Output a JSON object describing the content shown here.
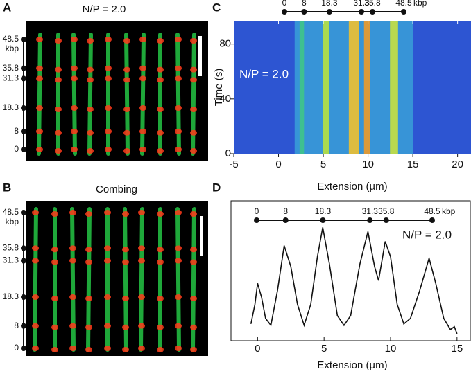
{
  "panel_a": {
    "label": "A",
    "title": "N/P = 2.0",
    "unit": "kbp",
    "marks": [
      0,
      8,
      18.3,
      31.3,
      35.8,
      48.5
    ]
  },
  "panel_b": {
    "label": "B",
    "title": "Combing",
    "unit": "kbp",
    "marks": [
      0,
      8,
      18.3,
      31.3,
      35.8,
      48.5
    ]
  },
  "panel_c": {
    "label": "C",
    "type": "heatmap",
    "title": "N/P = 2.0",
    "x_label": "Extension (µm)",
    "y_label": "Time (s)",
    "xlim": [
      -5,
      21.5
    ],
    "xticks": [
      -5,
      0,
      5,
      10,
      15,
      20
    ],
    "ylim": [
      0,
      97
    ],
    "yticks": [
      0,
      40,
      80
    ],
    "unit": "kbp",
    "marks": [
      0,
      8,
      18.3,
      31.3,
      35.8,
      48.5
    ],
    "band_centers": [
      2.6,
      5.3,
      8.4,
      9.9,
      12.9
    ]
  },
  "panel_d": {
    "label": "D",
    "type": "line",
    "title": "N/P = 2.0",
    "x_label": "Extension (µm)",
    "xlim": [
      -2,
      16
    ],
    "xticks": [
      0,
      5,
      10,
      15
    ],
    "ylim": [
      0,
      1
    ],
    "unit": "kbp",
    "marks": [
      0,
      8,
      18.3,
      31.3,
      35.8,
      48.5
    ],
    "x": [
      -0.5,
      -0.2,
      0,
      0.3,
      0.6,
      1,
      1.5,
      2,
      2.5,
      3,
      3.5,
      4,
      4.5,
      4.9,
      5.4,
      6,
      6.5,
      7,
      7.7,
      8.3,
      8.8,
      9.1,
      9.6,
      10,
      10.5,
      11,
      11.5,
      12.2,
      12.9,
      13.4,
      14,
      14.5,
      14.8,
      15
    ],
    "values": [
      0.12,
      0.26,
      0.41,
      0.31,
      0.16,
      0.11,
      0.36,
      0.68,
      0.53,
      0.26,
      0.11,
      0.26,
      0.6,
      0.81,
      0.55,
      0.18,
      0.11,
      0.18,
      0.55,
      0.78,
      0.53,
      0.43,
      0.71,
      0.6,
      0.26,
      0.12,
      0.16,
      0.36,
      0.59,
      0.41,
      0.16,
      0.08,
      0.1,
      0.05
    ]
  }
}
